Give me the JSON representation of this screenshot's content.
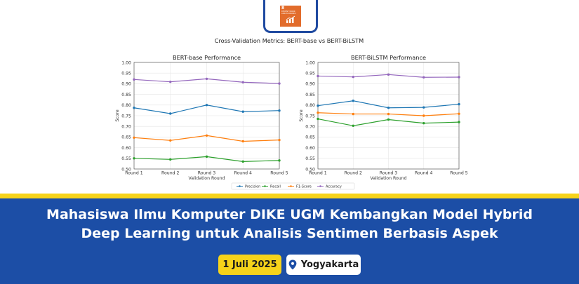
{
  "header": {
    "sdg_badge": {
      "number": "8",
      "text": "DECENT WORK AND ECONOMIC GROWTH",
      "color": "#e26c2b"
    }
  },
  "chart_data": {
    "type": "line",
    "title": "Cross-Validation Metrics: BERT-base vs BERT-BiLSTM",
    "legend": {
      "position": "bottom-center",
      "entries": [
        "Precision",
        "Recall",
        "F1-Score",
        "Accuracy"
      ]
    },
    "colors": {
      "Precision": "#1f77b4",
      "Recall": "#2ca02c",
      "F1-Score": "#ff7f0e",
      "Accuracy": "#9467bd"
    },
    "subplots": [
      {
        "title": "BERT-base Performance",
        "xlabel": "Validation Round",
        "ylabel": "Score",
        "categories": [
          "Round 1",
          "Round 2",
          "Round 3",
          "Round 4",
          "Round 5"
        ],
        "ylim": [
          0.5,
          1.0
        ],
        "yticks": [
          "0.50",
          "0.55",
          "0.60",
          "0.65",
          "0.70",
          "0.75",
          "0.80",
          "0.85",
          "0.90",
          "0.95",
          "1.00"
        ],
        "grid": true,
        "series": [
          {
            "name": "Precision",
            "values": [
              0.787,
              0.76,
              0.8,
              0.769,
              0.774
            ]
          },
          {
            "name": "Recall",
            "values": [
              0.55,
              0.545,
              0.558,
              0.535,
              0.54
            ]
          },
          {
            "name": "F1-Score",
            "values": [
              0.647,
              0.634,
              0.657,
              0.63,
              0.636
            ]
          },
          {
            "name": "Accuracy",
            "values": [
              0.92,
              0.909,
              0.923,
              0.907,
              0.901
            ]
          }
        ]
      },
      {
        "title": "BERT-BiLSTM Performance",
        "xlabel": "Validation Round",
        "ylabel": "Score",
        "categories": [
          "Round 1",
          "Round 2",
          "Round 3",
          "Round 4",
          "Round 5"
        ],
        "ylim": [
          0.5,
          1.0
        ],
        "yticks": [
          "0.50",
          "0.55",
          "0.60",
          "0.65",
          "0.70",
          "0.75",
          "0.80",
          "0.85",
          "0.90",
          "0.95",
          "1.00"
        ],
        "grid": true,
        "series": [
          {
            "name": "Precision",
            "values": [
              0.797,
              0.82,
              0.787,
              0.789,
              0.804
            ]
          },
          {
            "name": "Recall",
            "values": [
              0.735,
              0.703,
              0.732,
              0.715,
              0.72
            ]
          },
          {
            "name": "F1-Score",
            "values": [
              0.764,
              0.758,
              0.758,
              0.75,
              0.759
            ]
          },
          {
            "name": "Accuracy",
            "values": [
              0.936,
              0.932,
              0.943,
              0.93,
              0.931
            ]
          }
        ]
      }
    ]
  },
  "banner": {
    "headline_line1": "Mahasiswa Ilmu Komputer DIKE UGM Kembangkan Model Hybrid",
    "headline_line2": "Deep Learning untuk Analisis Sentimen Berbasis Aspek",
    "date": "1 Juli 2025",
    "location": "Yogyakarta",
    "location_icon": "map-pin-icon",
    "colors": {
      "panel": "#1c4ea6",
      "accent": "#f6d31a"
    }
  }
}
